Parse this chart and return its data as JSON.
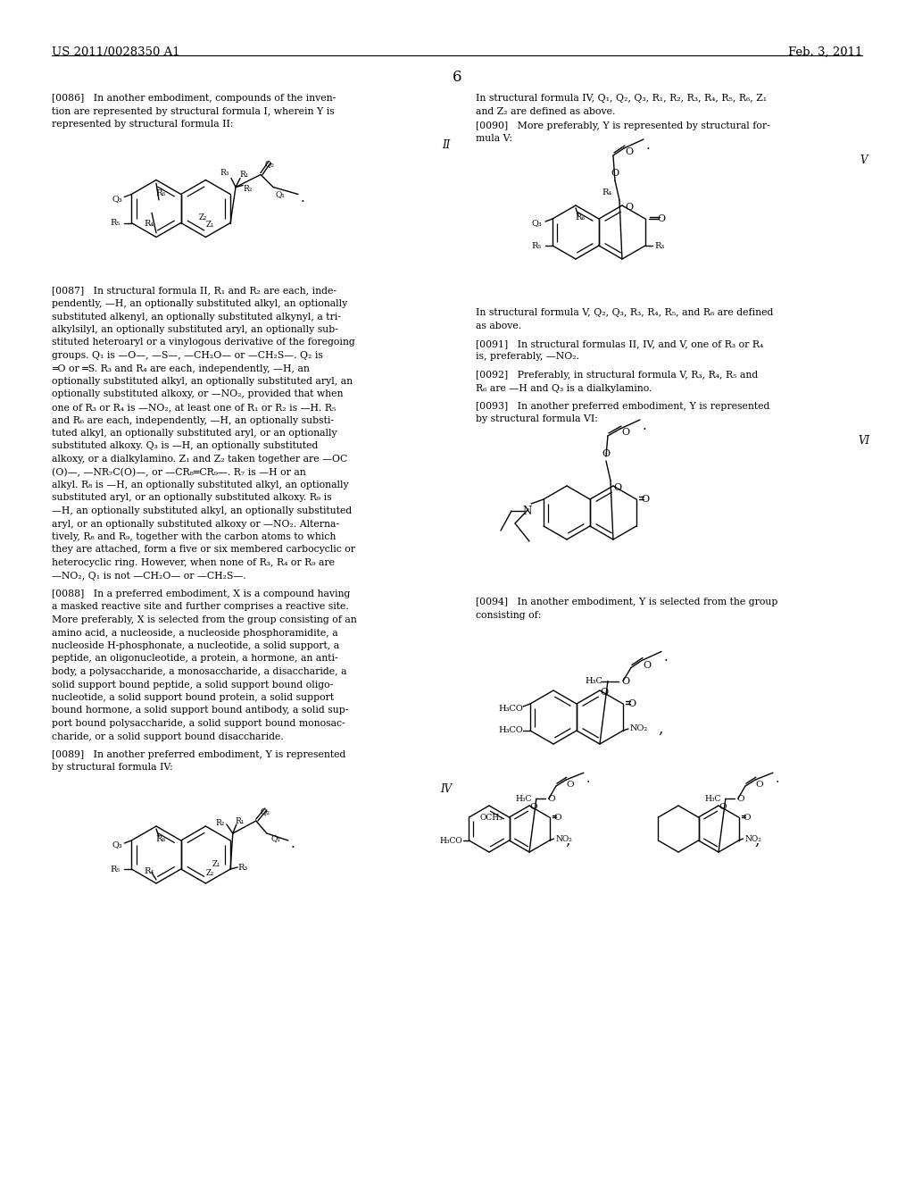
{
  "background_color": "#ffffff",
  "header_left": "US 2011/0028350 A1",
  "header_right": "Feb. 3, 2011",
  "page_num": "6"
}
